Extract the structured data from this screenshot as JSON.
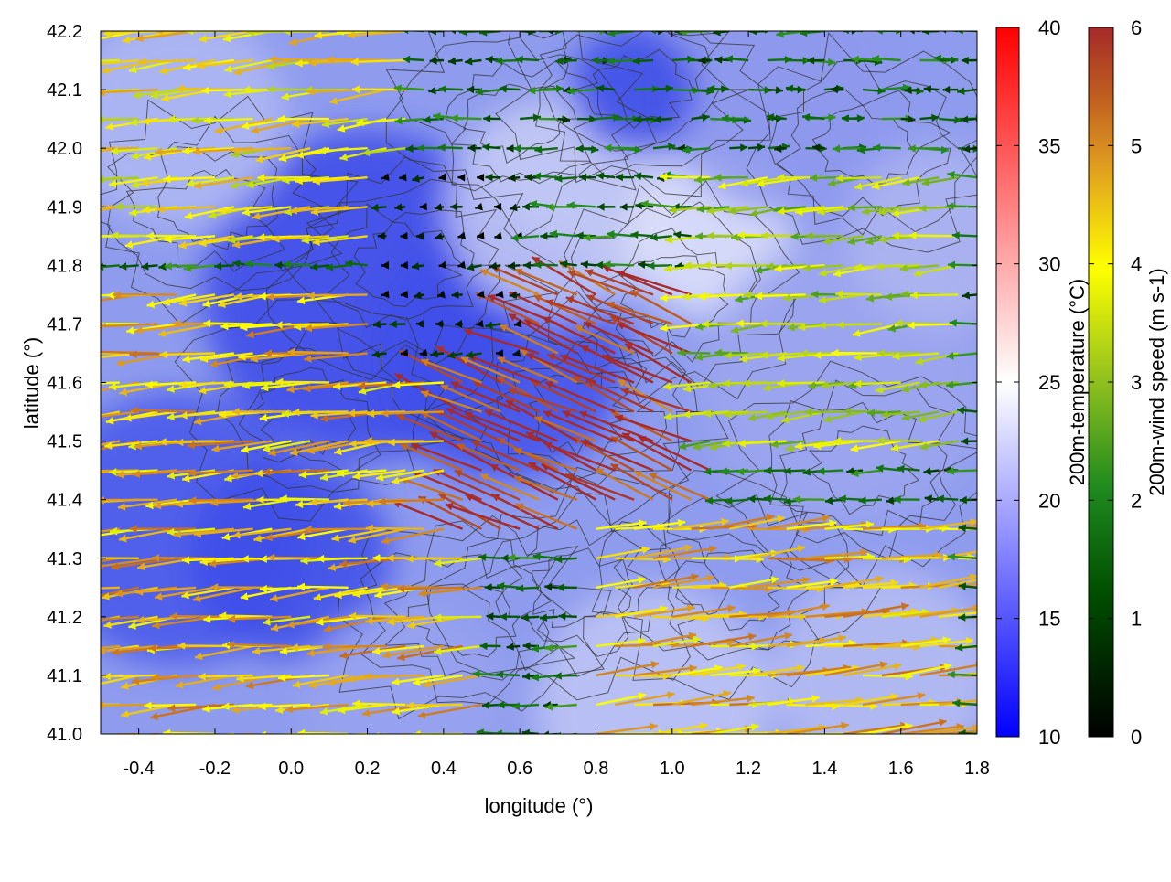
{
  "chart_data": {
    "type": "vector-field",
    "xlabel": "longitude (°)",
    "ylabel": "latitude (°)",
    "xlim": [
      -0.5,
      1.8
    ],
    "ylim": [
      41.0,
      42.2
    ],
    "xticks": [
      "-0.4",
      "-0.2",
      "0.0",
      "0.2",
      "0.4",
      "0.6",
      "0.8",
      "1.0",
      "1.2",
      "1.4",
      "1.6",
      "1.8"
    ],
    "yticks": [
      "41.0",
      "41.1",
      "41.2",
      "41.3",
      "41.4",
      "41.5",
      "41.6",
      "41.7",
      "41.8",
      "41.9",
      "42.0",
      "42.1",
      "42.2"
    ],
    "background_field": "200m-temperature",
    "contours": "terrain elevation (unlabeled)",
    "colorbars": [
      {
        "label": "200m-temperature (°C)",
        "range": [
          10,
          40
        ],
        "ticks": [
          "10",
          "15",
          "20",
          "25",
          "30",
          "35",
          "40"
        ],
        "colors": [
          "#0000ff",
          "#ffffff",
          "#ff0000"
        ]
      },
      {
        "label": "200m-wind speed (m s-1)",
        "range": [
          0,
          6
        ],
        "ticks": [
          "0",
          "1",
          "2",
          "3",
          "4",
          "5",
          "6"
        ],
        "colors": [
          "#000000",
          "#006400",
          "#228b22",
          "#9acd32",
          "#ffff00",
          "#daa520",
          "#cd853f",
          "#a52a2a"
        ]
      }
    ],
    "wind_regions": [
      {
        "region": "south-west lowlands, westward flow",
        "lon": [
          -0.5,
          0.5
        ],
        "lat": [
          41.0,
          41.75
        ],
        "speed": 4.5
      },
      {
        "region": "north-west, westward flow",
        "lon": [
          -0.5,
          0.3
        ],
        "lat": [
          41.8,
          42.2
        ],
        "speed": 4.0
      },
      {
        "region": "central jet, strong south-westward flow",
        "lon": [
          0.4,
          1.15
        ],
        "lat": [
          41.3,
          41.75
        ],
        "speed": 5.8
      },
      {
        "region": "central calm area",
        "lon": [
          0.2,
          0.6
        ],
        "lat": [
          41.6,
          41.95
        ],
        "speed": 0.3
      },
      {
        "region": "eastern lowlands, westward flow",
        "lon": [
          1.1,
          1.8
        ],
        "lat": [
          41.45,
          41.95
        ],
        "speed": 3.2
      },
      {
        "region": "south-east, eastward flow",
        "lon": [
          0.8,
          1.8
        ],
        "lat": [
          41.0,
          41.35
        ],
        "speed": 4.5
      },
      {
        "region": "north-east, weak mixed flow",
        "lon": [
          0.6,
          1.8
        ],
        "lat": [
          41.95,
          42.2
        ],
        "speed": 1.5
      }
    ]
  }
}
